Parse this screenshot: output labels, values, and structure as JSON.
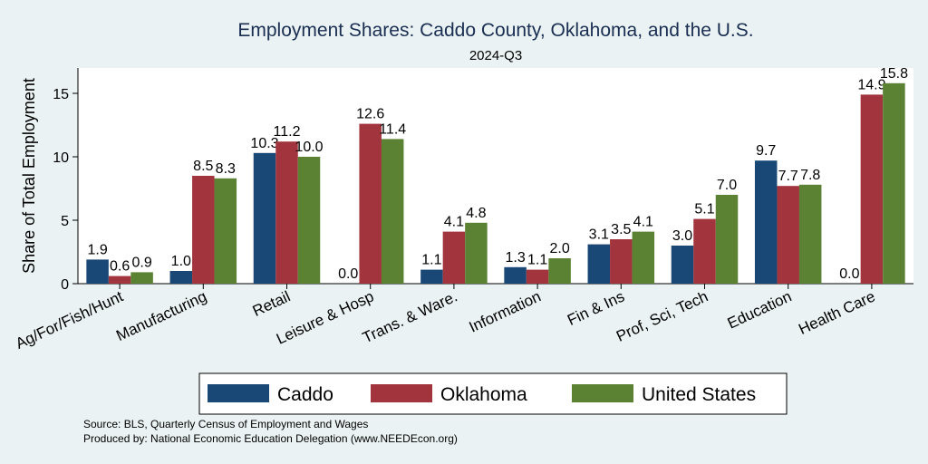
{
  "chart_data": {
    "type": "bar",
    "title": "Employment Shares: Caddo County, Oklahoma, and the U.S.",
    "subtitle": "2024-Q3",
    "ylabel": "Share of Total Employment",
    "xlabel": "",
    "ylim": [
      0,
      17
    ],
    "yticks": [
      0,
      5,
      10,
      15
    ],
    "grid": false,
    "legend_position": "bottom",
    "categories": [
      "Ag/For/Fish/Hunt",
      "Manufacturing",
      "Retail",
      "Leisure & Hosp",
      "Trans. & Ware.",
      "Information",
      "Fin & Ins",
      "Prof, Sci, Tech",
      "Education",
      "Health Care"
    ],
    "series": [
      {
        "name": "Caddo",
        "color": "#1a4876",
        "values": [
          1.9,
          1.0,
          10.3,
          0.0,
          1.1,
          1.3,
          3.1,
          3.0,
          9.7,
          0.0
        ]
      },
      {
        "name": "Oklahoma",
        "color": "#a1343c",
        "values": [
          0.6,
          8.5,
          11.2,
          12.6,
          4.1,
          1.1,
          3.5,
          5.1,
          7.7,
          14.9
        ]
      },
      {
        "name": "United States",
        "color": "#5a8232",
        "values": [
          0.9,
          8.3,
          10.0,
          11.4,
          4.8,
          2.0,
          4.1,
          7.0,
          7.8,
          15.8
        ]
      }
    ]
  },
  "notes": {
    "source": "Source: BLS, Quarterly Census of Employment and Wages",
    "produced": "Produced by: National Economic Education Delegation (www.NEEDEcon.org)"
  }
}
